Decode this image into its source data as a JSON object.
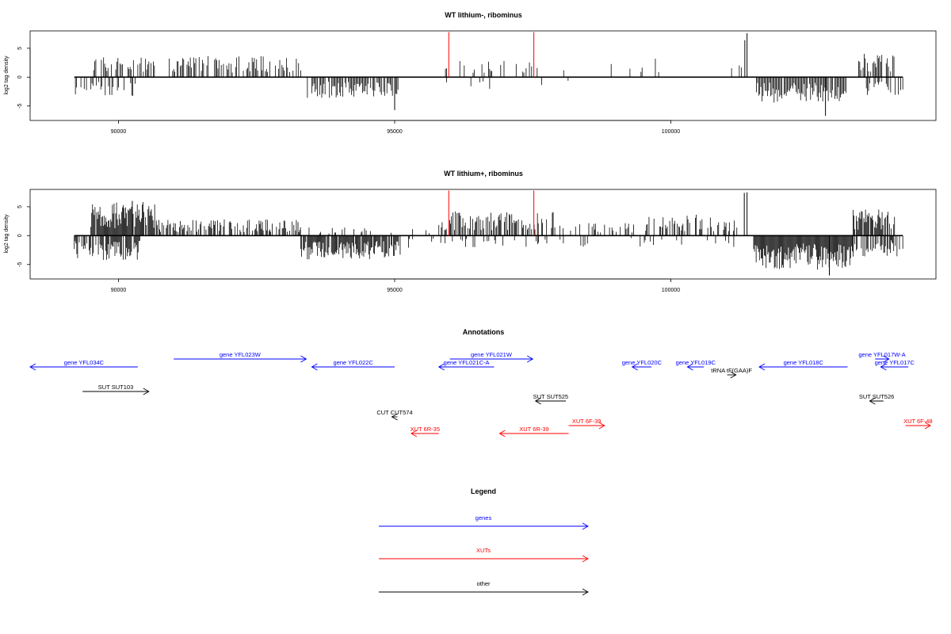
{
  "chart_data": [
    {
      "type": "bar",
      "title": "WT lithium-, ribominus",
      "ylabel": "log2 tag density",
      "xlim": [
        88400,
        104800
      ],
      "ylim": [
        -7.5,
        8
      ],
      "x_ticks": [
        90000,
        95000,
        100000
      ],
      "y_ticks": [
        -5,
        0,
        5
      ],
      "y_tick_labels": [
        "-5",
        "0",
        "5"
      ],
      "data_range": [
        89200,
        104200
      ],
      "bar_step": 20,
      "bar_color": "#000000",
      "positive_segments": [
        {
          "start": 89550,
          "end": 90650,
          "height": 2.6,
          "fill": 0.55
        },
        {
          "start": 90900,
          "end": 93300,
          "height": 2.6,
          "fill": 0.6
        },
        {
          "start": 95800,
          "end": 97800,
          "height": 2.0,
          "fill": 0.18
        },
        {
          "start": 97800,
          "end": 99800,
          "height": 2.4,
          "fill": 0.08
        },
        {
          "start": 100400,
          "end": 101300,
          "height": 1.8,
          "fill": 0.05
        },
        {
          "start": 103400,
          "end": 104050,
          "height": 3.0,
          "fill": 0.7
        }
      ],
      "negative_segments": [
        {
          "start": 89200,
          "end": 90300,
          "height": 2.4,
          "fill": 0.45
        },
        {
          "start": 93400,
          "end": 95100,
          "height": 2.6,
          "fill": 0.85
        },
        {
          "start": 95800,
          "end": 98200,
          "height": 1.6,
          "fill": 0.06
        },
        {
          "start": 101550,
          "end": 103200,
          "height": 3.2,
          "fill": 0.95
        },
        {
          "start": 103500,
          "end": 104200,
          "height": 2.2,
          "fill": 0.5
        }
      ],
      "spikes": [
        {
          "x": 95980,
          "y": 7.8,
          "color": "#ff0000"
        },
        {
          "x": 97520,
          "y": 7.8,
          "color": "#ff0000"
        },
        {
          "x": 101380,
          "y": 7.6,
          "color": "#000000"
        },
        {
          "x": 101340,
          "y": 6.4,
          "color": "#000000"
        },
        {
          "x": 102800,
          "y": -6.7,
          "color": "#000000"
        },
        {
          "x": 95000,
          "y": -5.7,
          "color": "#000000"
        }
      ]
    },
    {
      "type": "bar",
      "title": "WT lithium+, ribominus",
      "ylabel": "log2 tag density",
      "xlim": [
        88400,
        104800
      ],
      "ylim": [
        -7.5,
        8
      ],
      "x_ticks": [
        90000,
        95000,
        100000
      ],
      "y_ticks": [
        -5,
        0,
        5
      ],
      "y_tick_labels": [
        "-5",
        "0",
        "5"
      ],
      "data_range": [
        89200,
        104200
      ],
      "bar_step": 15,
      "bar_color": "#000000",
      "positive_segments": [
        {
          "start": 89500,
          "end": 90700,
          "height": 4.2,
          "fill": 0.95
        },
        {
          "start": 90700,
          "end": 93300,
          "height": 2.0,
          "fill": 0.55
        },
        {
          "start": 93300,
          "end": 95800,
          "height": 1.0,
          "fill": 0.12
        },
        {
          "start": 95800,
          "end": 97900,
          "height": 3.0,
          "fill": 0.5
        },
        {
          "start": 97900,
          "end": 99500,
          "height": 1.6,
          "fill": 0.2
        },
        {
          "start": 99500,
          "end": 101200,
          "height": 2.6,
          "fill": 0.45
        },
        {
          "start": 103300,
          "end": 104050,
          "height": 3.4,
          "fill": 0.8
        }
      ],
      "negative_segments": [
        {
          "start": 89200,
          "end": 90400,
          "height": 3.0,
          "fill": 0.7
        },
        {
          "start": 93300,
          "end": 95100,
          "height": 3.0,
          "fill": 0.85
        },
        {
          "start": 95100,
          "end": 98800,
          "height": 1.5,
          "fill": 0.12
        },
        {
          "start": 98800,
          "end": 101200,
          "height": 1.4,
          "fill": 0.08
        },
        {
          "start": 101500,
          "end": 103300,
          "height": 4.2,
          "fill": 1.0
        },
        {
          "start": 103300,
          "end": 104200,
          "height": 2.6,
          "fill": 0.6
        }
      ],
      "spikes": [
        {
          "x": 95980,
          "y": 7.8,
          "color": "#ff0000"
        },
        {
          "x": 97520,
          "y": 7.8,
          "color": "#ff0000"
        },
        {
          "x": 101380,
          "y": 7.5,
          "color": "#000000"
        },
        {
          "x": 101330,
          "y": 7.4,
          "color": "#000000"
        },
        {
          "x": 102870,
          "y": -6.9,
          "color": "#000000"
        },
        {
          "x": 90250,
          "y": 6.0,
          "color": "#000000"
        }
      ]
    }
  ],
  "annotations": {
    "title": "Annotations",
    "xlim": [
      88400,
      104800
    ],
    "features": [
      {
        "label": "gene YFL034C",
        "start": 88400,
        "end": 90350,
        "strand": "-",
        "row": 1,
        "color": "#0000ff"
      },
      {
        "label": "gene YFL023W",
        "start": 91000,
        "end": 93400,
        "strand": "+",
        "row": 0,
        "color": "#0000ff"
      },
      {
        "label": "gene YFL022C",
        "start": 93500,
        "end": 95000,
        "strand": "-",
        "row": 1,
        "color": "#0000ff"
      },
      {
        "label": "gene YFL021W",
        "start": 96000,
        "end": 97500,
        "strand": "+",
        "row": 0,
        "color": "#0000ff"
      },
      {
        "label": "gene YFL021C-A",
        "start": 95800,
        "end": 96800,
        "strand": "-",
        "row": 1,
        "color": "#0000ff"
      },
      {
        "label": "gene YFL020C",
        "start": 99300,
        "end": 99650,
        "strand": "-",
        "row": 1,
        "color": "#0000ff"
      },
      {
        "label": "gene YFL019C",
        "start": 100300,
        "end": 100600,
        "strand": "-",
        "row": 1,
        "color": "#0000ff"
      },
      {
        "label": "gene YFL018C",
        "start": 101600,
        "end": 103200,
        "strand": "-",
        "row": 1,
        "color": "#0000ff"
      },
      {
        "label": "gene YFL017W-A",
        "start": 103700,
        "end": 103950,
        "strand": "+",
        "row": 0,
        "color": "#0000ff"
      },
      {
        "label": "gene YFL017C",
        "start": 103800,
        "end": 104300,
        "strand": "-",
        "row": 1,
        "color": "#0000ff"
      },
      {
        "label": "tRNA tF(GAA)F",
        "start": 101020,
        "end": 101180,
        "strand": "+",
        "row": 2,
        "color": "#000000"
      },
      {
        "label": "SUT SUT103",
        "start": 89350,
        "end": 90550,
        "strand": "+",
        "row": 3,
        "color": "#000000"
      },
      {
        "label": "SUT SUT525",
        "start": 97550,
        "end": 98100,
        "strand": "-",
        "row": 4,
        "color": "#000000"
      },
      {
        "label": "SUT SUT526",
        "start": 103600,
        "end": 103850,
        "strand": "-",
        "row": 4,
        "color": "#000000"
      },
      {
        "label": "CUT CUT574",
        "start": 94950,
        "end": 95050,
        "strand": "-",
        "row": 5,
        "color": "#000000"
      },
      {
        "label": "XUT 6F-39",
        "start": 98150,
        "end": 98800,
        "strand": "+",
        "row": 6,
        "color": "#ff0000"
      },
      {
        "label": "XUT 6F-48",
        "start": 104250,
        "end": 104700,
        "strand": "+",
        "row": 6,
        "color": "#ff0000"
      },
      {
        "label": "XUT 6R-35",
        "start": 95300,
        "end": 95800,
        "strand": "-",
        "row": 7,
        "color": "#ff0000"
      },
      {
        "label": "XUT 6R-39",
        "start": 96900,
        "end": 98150,
        "strand": "-",
        "row": 7,
        "color": "#ff0000"
      }
    ]
  },
  "legend": {
    "title": "Legend",
    "items": [
      {
        "label": "genes",
        "color": "#0000ff"
      },
      {
        "label": "XUTs",
        "color": "#ff0000"
      },
      {
        "label": "other",
        "color": "#000000"
      }
    ]
  }
}
